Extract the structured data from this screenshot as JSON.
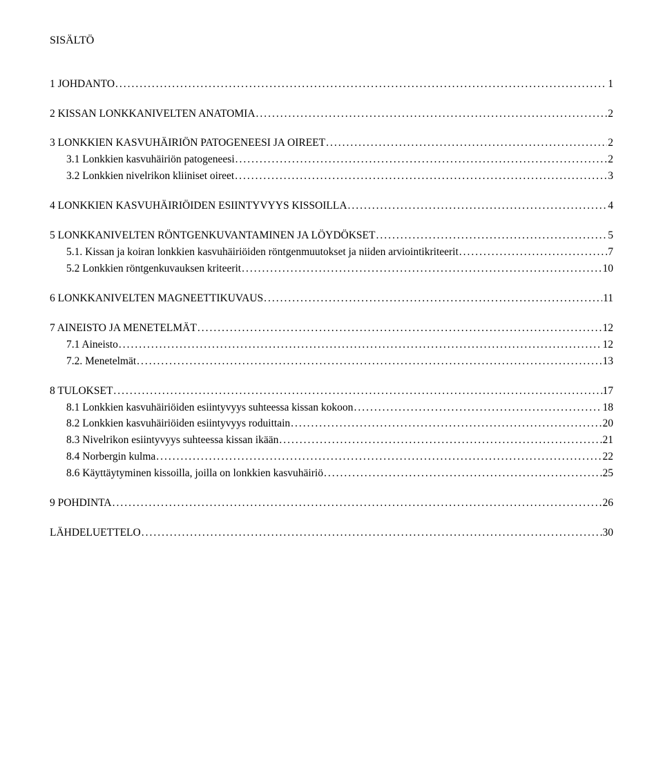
{
  "title": "SISÄLTÖ",
  "entries": [
    {
      "level": 1,
      "label": "1 JOHDANTO",
      "page": "1"
    },
    {
      "level": 1,
      "label": "2 KISSAN LONKKANIVELTEN ANATOMIA",
      "page": "2"
    },
    {
      "level": 1,
      "label": "3 LONKKIEN KASVUHÄIRIÖN PATOGENEESI JA OIREET",
      "page": "2"
    },
    {
      "level": 2,
      "label": "3.1 Lonkkien kasvuhäiriön patogeneesi",
      "page": "2"
    },
    {
      "level": 2,
      "label": "3.2 Lonkkien nivelrikon kliiniset oireet",
      "page": "3"
    },
    {
      "level": 1,
      "label": "4 LONKKIEN KASVUHÄIRIÖIDEN ESIINTYVYYS KISSOILLA",
      "page": "4"
    },
    {
      "level": 1,
      "label": "5 LONKKANIVELTEN RÖNTGENKUVANTAMINEN JA LÖYDÖKSET",
      "page": "5"
    },
    {
      "level": 2,
      "label": "5.1. Kissan ja koiran lonkkien kasvuhäiriöiden röntgenmuutokset ja niiden arviointikriteerit",
      "page": "7"
    },
    {
      "level": 2,
      "label": "5.2 Lonkkien röntgenkuvauksen kriteerit",
      "page": "10"
    },
    {
      "level": 1,
      "label": "6 LONKKANIVELTEN MAGNEETTIKUVAUS",
      "page": "11"
    },
    {
      "level": 1,
      "label": "7 AINEISTO JA MENETELMÄT",
      "page": "12"
    },
    {
      "level": 2,
      "label": "7.1 Aineisto",
      "page": "12"
    },
    {
      "level": 2,
      "label": "7.2. Menetelmät",
      "page": "13"
    },
    {
      "level": 1,
      "label": "8 TULOKSET",
      "page": "17"
    },
    {
      "level": 2,
      "label": "8.1 Lonkkien kasvuhäiriöiden esiintyvyys suhteessa kissan kokoon",
      "page": "18"
    },
    {
      "level": 2,
      "label": "8.2 Lonkkien kasvuhäiriöiden esiintyvyys roduittain",
      "page": "20"
    },
    {
      "level": 2,
      "label": "8.3 Nivelrikon esiintyvyys suhteessa kissan ikään",
      "page": "21"
    },
    {
      "level": 2,
      "label": "8.4 Norbergin kulma",
      "page": "22"
    },
    {
      "level": 2,
      "label": "8.6 Käyttäytyminen kissoilla, joilla on lonkkien kasvuhäiriö",
      "page": "25"
    },
    {
      "level": 1,
      "label": "9 POHDINTA",
      "page": "26"
    },
    {
      "level": 1,
      "label": "LÄHDELUETTELO",
      "page": "30"
    }
  ]
}
